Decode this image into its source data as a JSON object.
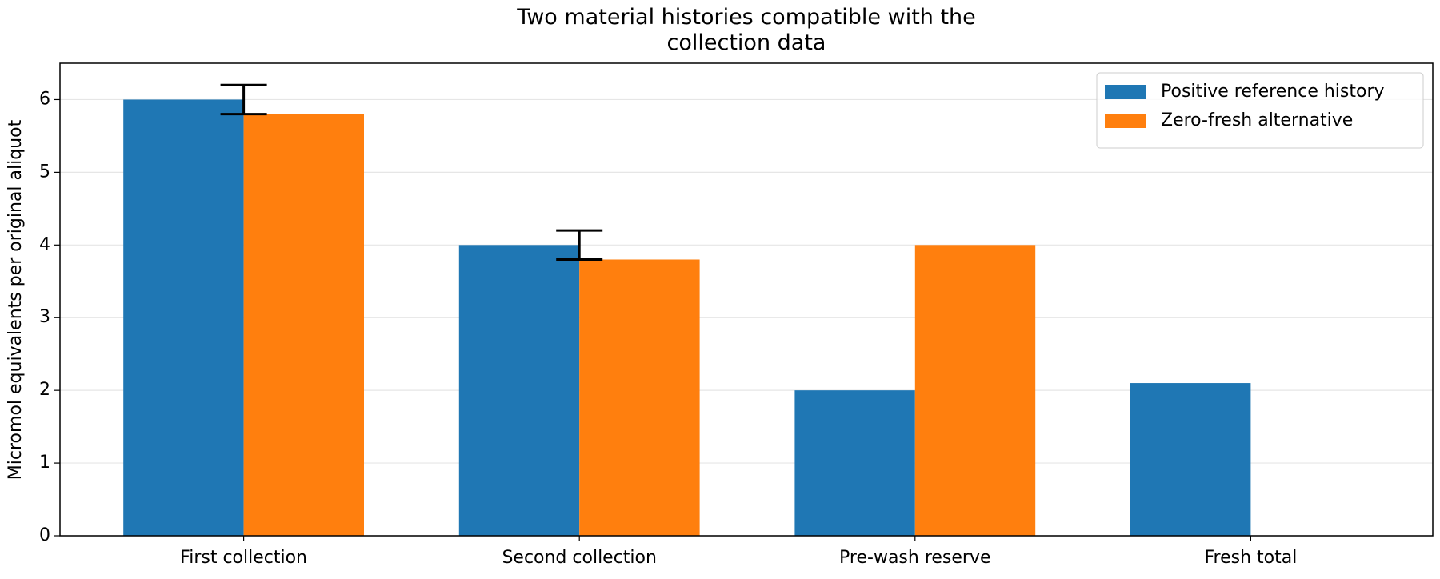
{
  "chart_data": {
    "type": "bar",
    "title": "Two material histories compatible with the\ncollection data",
    "y_label": "Micromol equivalents per original aliquot",
    "categories": [
      "First collection",
      "Second collection",
      "Pre-wash reserve",
      "Fresh total"
    ],
    "series": [
      {
        "name": "Positive reference history",
        "color": "#1f77b4",
        "values": [
          6,
          4,
          2,
          2.1
        ],
        "errors": [
          0.2,
          0.2,
          null,
          null
        ]
      },
      {
        "name": "Zero-fresh alternative",
        "color": "#ff7f0e",
        "values": [
          5.8,
          3.8,
          4,
          0
        ]
      }
    ],
    "ylim": [
      0,
      6.5
    ],
    "yticks": [
      0,
      1,
      2,
      3,
      4,
      5,
      6
    ],
    "grid": true,
    "legend": "upper right"
  }
}
